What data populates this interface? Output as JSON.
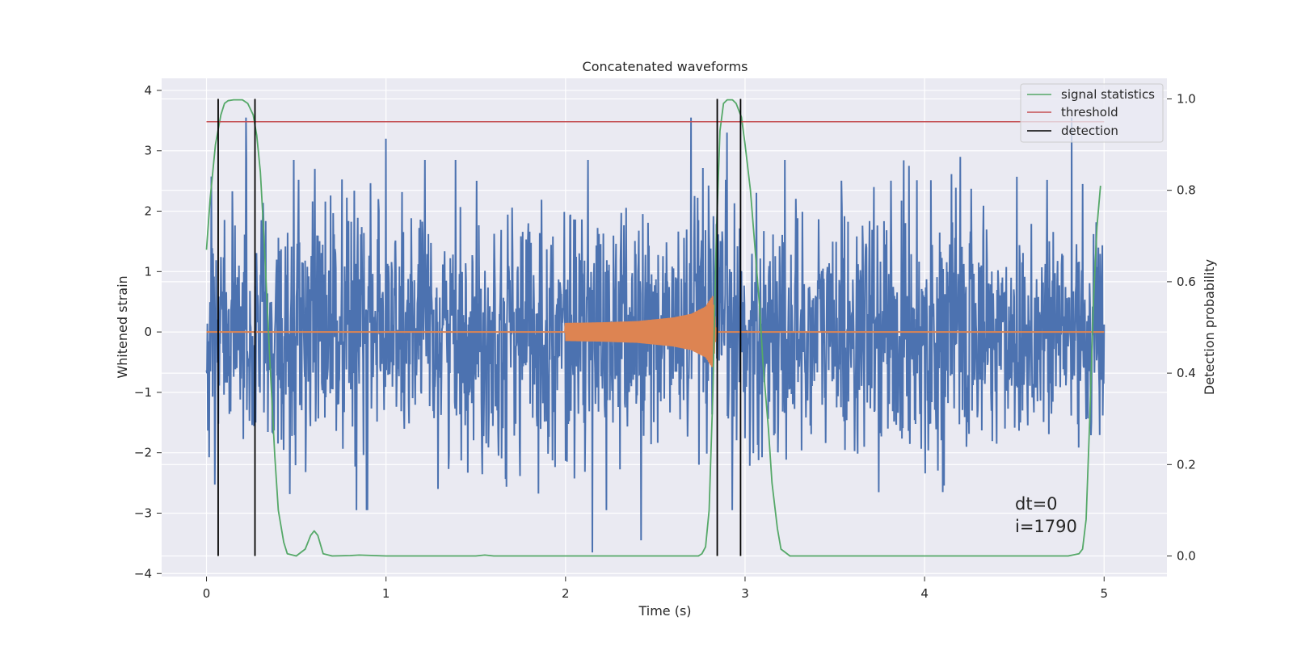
{
  "chart_data": {
    "type": "line",
    "title": "Concatenated waveforms",
    "xlabel": "Time (s)",
    "ylabel": "Whitened strain",
    "y2label": "Detection probability",
    "xlim": [
      -0.25,
      5.35
    ],
    "ylim": [
      -4.05,
      4.2
    ],
    "y2lim": [
      -0.045,
      1.045
    ],
    "xticks": [
      0,
      1,
      2,
      3,
      4,
      5
    ],
    "yticks": [
      -4,
      -3,
      -2,
      -1,
      0,
      1,
      2,
      3,
      4
    ],
    "y2ticks": [
      0.0,
      0.2,
      0.4,
      0.6,
      0.8,
      1.0
    ],
    "xtick_labels": [
      "0",
      "1",
      "2",
      "3",
      "4",
      "5"
    ],
    "ytick_labels": [
      "−4",
      "−3",
      "−2",
      "−1",
      "0",
      "1",
      "2",
      "3",
      "4"
    ],
    "y2tick_labels": [
      "0.0",
      "0.2",
      "0.4",
      "0.6",
      "0.8",
      "1.0"
    ],
    "grid": true,
    "legend_position": "top-right",
    "colors": {
      "strain": "#4c72b0",
      "template": "#dd8452",
      "signal_statistics": "#55a868",
      "threshold": "#c44e52",
      "detection": "#000000",
      "plot_bg": "#eaeaf2",
      "grid": "#ffffff"
    },
    "series": [
      {
        "name": "signal statistics",
        "axis": "y2",
        "x": [
          0.0,
          0.02,
          0.05,
          0.08,
          0.1,
          0.12,
          0.15,
          0.2,
          0.23,
          0.26,
          0.28,
          0.3,
          0.32,
          0.35,
          0.38,
          0.4,
          0.43,
          0.45,
          0.5,
          0.55,
          0.58,
          0.6,
          0.62,
          0.65,
          0.7,
          0.8,
          0.85,
          1.0,
          1.5,
          1.55,
          1.6,
          2.0,
          2.5,
          2.74,
          2.76,
          2.78,
          2.8,
          2.82,
          2.84,
          2.86,
          2.88,
          2.9,
          2.93,
          2.95,
          2.98,
          3.0,
          3.03,
          3.05,
          3.08,
          3.1,
          3.13,
          3.15,
          3.18,
          3.2,
          3.25,
          3.5,
          4.0,
          4.5,
          4.8,
          4.86,
          4.88,
          4.9,
          4.92,
          4.94,
          4.96,
          4.98
        ],
        "values": [
          0.67,
          0.78,
          0.9,
          0.965,
          0.99,
          0.996,
          0.998,
          0.998,
          0.99,
          0.965,
          0.92,
          0.84,
          0.7,
          0.45,
          0.22,
          0.1,
          0.03,
          0.005,
          0.0,
          0.015,
          0.045,
          0.055,
          0.045,
          0.005,
          0.0,
          0.001,
          0.002,
          0.0,
          0.0,
          0.002,
          0.0,
          0.0,
          0.0,
          0.0,
          0.005,
          0.02,
          0.1,
          0.35,
          0.7,
          0.93,
          0.99,
          0.998,
          0.998,
          0.99,
          0.96,
          0.9,
          0.8,
          0.7,
          0.55,
          0.42,
          0.28,
          0.16,
          0.06,
          0.015,
          0.0,
          0.0,
          0.0,
          0.0,
          0.0,
          0.005,
          0.015,
          0.08,
          0.3,
          0.55,
          0.72,
          0.81
        ]
      },
      {
        "name": "threshold",
        "axis": "y2",
        "x": [
          0.0,
          5.0
        ],
        "values": [
          0.95,
          0.95
        ]
      },
      {
        "name": "detection",
        "axis": "y2",
        "vlines": [
          0.065,
          0.27,
          2.845,
          2.975
        ],
        "ymin": 0.0,
        "ymax": 1.0
      }
    ],
    "strain_series": {
      "axis": "y",
      "x_start": 0.0,
      "x_end": 5.0,
      "n_samples": 2048,
      "typical_amplitude": 1.0,
      "peak_samples": [
        {
          "x": 0.22,
          "y": 3.55
        },
        {
          "x": 1.0,
          "y": 3.2
        },
        {
          "x": 2.15,
          "y": -3.65
        },
        {
          "x": 2.42,
          "y": -3.45
        },
        {
          "x": 2.7,
          "y": 3.55
        },
        {
          "x": 2.9,
          "y": 3.3
        },
        {
          "x": 4.2,
          "y": 2.9
        },
        {
          "x": 4.82,
          "y": 3.55
        },
        {
          "x": 4.88,
          "y": 2.45
        }
      ]
    },
    "template_series": {
      "axis": "y",
      "x": [
        0.0,
        2.0,
        2.2,
        2.4,
        2.6,
        2.7,
        2.78,
        2.82,
        2.84,
        5.0
      ],
      "envelope": [
        0.0,
        0.15,
        0.16,
        0.18,
        0.24,
        0.3,
        0.42,
        0.6,
        0.0,
        0.0
      ]
    },
    "annotations": [
      "dt=0",
      "i=1790"
    ]
  }
}
